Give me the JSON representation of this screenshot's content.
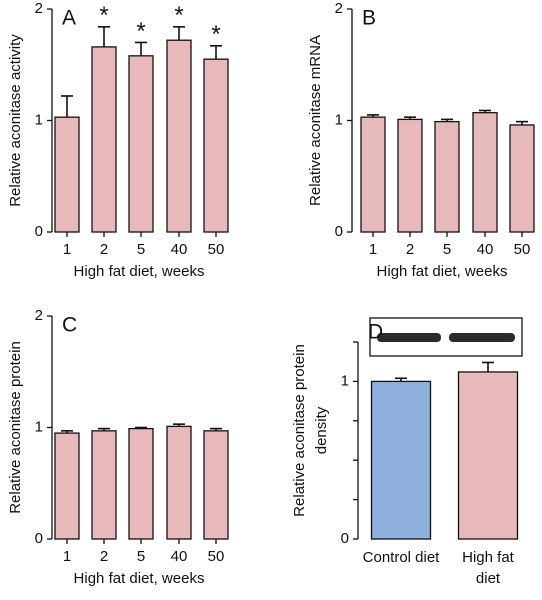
{
  "chart_data": [
    {
      "type": "bar",
      "panel": "A",
      "ylabel": "Relative aconitase activity",
      "xlabel": "High fat diet, weeks",
      "categories": [
        "1",
        "2",
        "5",
        "40",
        "50"
      ],
      "values": [
        1.03,
        1.66,
        1.58,
        1.72,
        1.55
      ],
      "errors": [
        0.19,
        0.18,
        0.12,
        0.12,
        0.12
      ],
      "annotations": [
        null,
        "*",
        "*",
        "*",
        "*"
      ],
      "color": "#e8b9bb",
      "ylim": [
        0,
        2
      ],
      "yticks": [
        0,
        1,
        2
      ]
    },
    {
      "type": "bar",
      "panel": "B",
      "ylabel": "Relative aconitase mRNA",
      "xlabel": "High fat diet, weeks",
      "categories": [
        "1",
        "2",
        "5",
        "40",
        "50"
      ],
      "values": [
        1.03,
        1.01,
        0.99,
        1.07,
        0.96
      ],
      "errors": [
        0.02,
        0.02,
        0.02,
        0.02,
        0.03
      ],
      "color": "#e8b9bb",
      "ylim": [
        0,
        2
      ],
      "yticks": [
        0,
        1,
        2
      ]
    },
    {
      "type": "bar",
      "panel": "C",
      "ylabel": "Relative aconitase protein",
      "xlabel": "High fat diet, weeks",
      "categories": [
        "1",
        "2",
        "5",
        "40",
        "50"
      ],
      "values": [
        0.95,
        0.97,
        0.99,
        1.01,
        0.97
      ],
      "errors": [
        0.02,
        0.02,
        0.01,
        0.02,
        0.02
      ],
      "color": "#e8b9bb",
      "ylim": [
        0,
        2
      ],
      "yticks": [
        0,
        1,
        2
      ]
    },
    {
      "type": "bar",
      "panel": "D",
      "ylabel": [
        "Relative aconitase protein",
        "density"
      ],
      "categories": [
        "Control diet",
        "High fat diet"
      ],
      "values": [
        1.0,
        1.06
      ],
      "errors": [
        0.02,
        0.06
      ],
      "colors": [
        "#8fb0dd",
        "#e8b9bb"
      ],
      "ylim": [
        0,
        1.25
      ],
      "yticks": [
        0,
        1
      ],
      "yminorticks": [
        0.25,
        0.5,
        0.75,
        1.25
      ]
    }
  ]
}
